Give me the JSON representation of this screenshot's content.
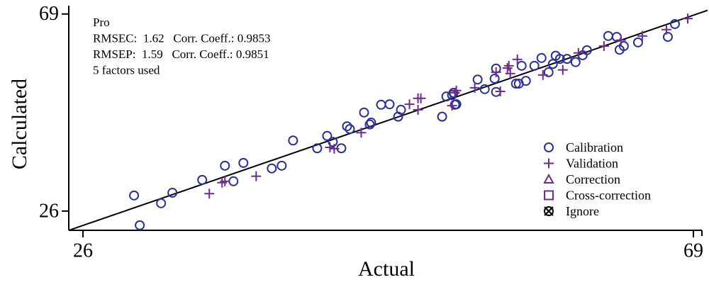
{
  "chart_data": {
    "type": "scatter",
    "xlabel": "Actual",
    "ylabel": "Calculated",
    "annotations": [
      "Pro",
      "RMSEC:  1.62   Corr. Coeff.: 0.9853",
      "RMSEP:  1.59   Corr. Coeff.: 0.9851",
      "5 factors used"
    ],
    "xlim": [
      25,
      69.6
    ],
    "ylim": [
      21.8,
      70.2
    ],
    "xticks": [
      26,
      69
    ],
    "yticks": [
      26,
      69
    ],
    "fit_line": {
      "x": [
        25,
        70
      ],
      "y": [
        21.8,
        69.8
      ]
    },
    "series": [
      {
        "name": "Calibration",
        "color": "#2b2f96",
        "marker": "circle",
        "x": [
          29.6,
          30.0,
          31.5,
          32.3,
          34.4,
          36.0,
          36.6,
          37.3,
          39.3,
          40.0,
          40.8,
          42.5,
          43.2,
          43.6,
          44.2,
          44.6,
          44.8,
          45.8,
          46.2,
          46.3,
          47.0,
          47.6,
          48.2,
          48.4,
          51.3,
          51.6,
          52.0,
          52.1,
          52.2,
          52.3,
          53.8,
          54.3,
          55.0,
          55.1,
          55.1,
          56.5,
          56.7,
          56.9,
          57.2,
          57.8,
          58.3,
          58.8,
          59.1,
          59.3,
          59.6,
          60.1,
          60.7,
          61.2,
          61.5,
          63.0,
          63.6,
          63.8,
          64.1,
          65.1,
          67.2,
          67.7
        ],
        "y": [
          29.4,
          22.9,
          27.7,
          30.0,
          32.8,
          35.9,
          32.5,
          36.5,
          35.3,
          35.9,
          41.4,
          39.7,
          42.4,
          41.1,
          39.7,
          44.5,
          43.9,
          47.5,
          44.9,
          45.3,
          49.2,
          49.3,
          46.6,
          48.1,
          46.6,
          51.0,
          51.3,
          51.8,
          49.2,
          49.3,
          54.7,
          52.6,
          54.9,
          57.1,
          52.0,
          53.8,
          53.8,
          57.7,
          54.4,
          57.7,
          59.4,
          56.3,
          58.1,
          59.9,
          59.2,
          59.2,
          58.5,
          60.0,
          61.1,
          64.2,
          64.0,
          61.2,
          62.0,
          62.8,
          64.0,
          66.8
        ]
      },
      {
        "name": "Validation",
        "color": "#6b2c8c",
        "marker": "plus",
        "x": [
          34.9,
          35.8,
          36.0,
          38.2,
          43.4,
          43.7,
          45.6,
          49.0,
          49.6,
          49.8,
          49.6,
          52.0,
          52.2,
          52.3,
          53.6,
          55.1,
          55.4,
          55.9,
          56.0,
          56.1,
          56.6,
          58.4,
          59.8,
          60.9,
          62.7,
          63.9,
          65.4,
          67.1,
          68.6
        ],
        "y": [
          29.8,
          32.2,
          32.5,
          33.6,
          39.9,
          39.6,
          43.1,
          49.3,
          50.6,
          50.6,
          48.1,
          49.0,
          51.8,
          52.3,
          52.9,
          56.3,
          52.1,
          57.2,
          57.7,
          56.0,
          59.1,
          55.7,
          56.8,
          60.5,
          62.0,
          63.3,
          64.2,
          65.6,
          68.0
        ]
      },
      {
        "name": "Correction",
        "color": "#6b2c8c",
        "marker": "triangle",
        "x": [],
        "y": []
      },
      {
        "name": "Cross-correction",
        "color": "#6b2c8c",
        "marker": "square",
        "x": [],
        "y": []
      },
      {
        "name": "Ignore",
        "color": "#000000",
        "marker": "xcircle",
        "x": [],
        "y": []
      }
    ]
  }
}
